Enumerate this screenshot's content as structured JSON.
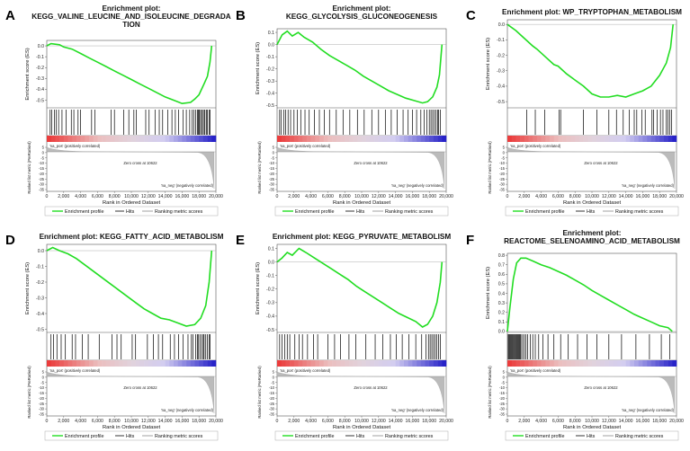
{
  "colors": {
    "es_line": "#22dd22",
    "hits": "#000000",
    "pos_label": "#ee2222",
    "neg_label": "#3333cc",
    "metric_fill": "#bbbbbb",
    "zero_line": "#999999"
  },
  "common": {
    "es_ylabel": "Enrichment score (ES)",
    "metric_ylabel": "Ranked list metric (PreRanked)",
    "xlabel": "Rank in Ordered Dataset",
    "zero_cross": "Zero cross at 10622",
    "pos_label": "'na_pos' (positively correlated)",
    "neg_label": "'na_neg' (negatively correlated)",
    "legend": [
      "Enrichment profile",
      "Hits",
      "Ranking metric scores"
    ],
    "x_ticks": [
      "0",
      "2,000",
      "4,000",
      "6,000",
      "8,000",
      "10,000",
      "12,000",
      "14,000",
      "16,000",
      "18,000",
      "20,000"
    ],
    "metric_ticks": [
      "5",
      "0",
      "-5",
      "-10",
      "-15",
      "-20",
      "-25",
      "-30",
      "-35"
    ]
  },
  "chart_data": [
    {
      "panel": "A",
      "type": "line",
      "title_lines": [
        "Enrichment plot:",
        "KEGG_VALINE_LEUCINE_AND_ISOLEUCINE_DEGRADA",
        "TION"
      ],
      "ylim": [
        -0.57,
        0.05
      ],
      "xlim": [
        0,
        20000
      ],
      "y_ticks": [
        0.0,
        -0.1,
        -0.2,
        -0.3,
        -0.4,
        -0.5
      ],
      "y_tick_labels": [
        "0.0",
        "-0.1",
        "-0.2",
        "-0.3",
        "-0.4",
        "-0.5"
      ],
      "es_points": [
        [
          0,
          0.0
        ],
        [
          500,
          0.02
        ],
        [
          1500,
          0.01
        ],
        [
          2000,
          -0.01
        ],
        [
          3000,
          -0.03
        ],
        [
          4000,
          -0.07
        ],
        [
          5000,
          -0.11
        ],
        [
          6000,
          -0.15
        ],
        [
          7000,
          -0.19
        ],
        [
          8000,
          -0.23
        ],
        [
          9000,
          -0.27
        ],
        [
          10000,
          -0.31
        ],
        [
          11000,
          -0.35
        ],
        [
          12000,
          -0.39
        ],
        [
          13000,
          -0.43
        ],
        [
          14000,
          -0.47
        ],
        [
          15000,
          -0.5
        ],
        [
          16000,
          -0.53
        ],
        [
          17000,
          -0.52
        ],
        [
          17500,
          -0.49
        ],
        [
          18000,
          -0.45
        ],
        [
          18600,
          -0.35
        ],
        [
          19000,
          -0.28
        ],
        [
          19300,
          -0.15
        ],
        [
          19500,
          0.0
        ]
      ],
      "hits": [
        400,
        600,
        900,
        1100,
        1400,
        1800,
        2300,
        2900,
        3200,
        3700,
        4000,
        5300,
        5700,
        7600,
        8000,
        9100,
        9700,
        10300,
        10600,
        11700,
        12100,
        12800,
        13300,
        13700,
        14300,
        14800,
        15200,
        15600,
        16100,
        16500,
        16900,
        17200,
        17400,
        17600,
        17800,
        17900,
        18000,
        18100,
        18300,
        18400,
        18600,
        18700,
        18900,
        19000,
        19200,
        19300
      ]
    },
    {
      "panel": "B",
      "type": "line",
      "title_lines": [
        "Enrichment plot:",
        "KEGG_GLYCOLYSIS_GLUCONEOGENESIS"
      ],
      "ylim": [
        -0.52,
        0.13
      ],
      "xlim": [
        0,
        20000
      ],
      "y_ticks": [
        0.1,
        0.0,
        -0.1,
        -0.2,
        -0.3,
        -0.4,
        -0.5
      ],
      "y_tick_labels": [
        "0.1",
        "0.0",
        "-0.1",
        "-0.2",
        "-0.3",
        "-0.4",
        "-0.5"
      ],
      "es_points": [
        [
          0,
          0.0
        ],
        [
          600,
          0.08
        ],
        [
          1200,
          0.11
        ],
        [
          1800,
          0.07
        ],
        [
          2500,
          0.1
        ],
        [
          3200,
          0.06
        ],
        [
          4200,
          0.02
        ],
        [
          5200,
          -0.04
        ],
        [
          6200,
          -0.09
        ],
        [
          7200,
          -0.13
        ],
        [
          8200,
          -0.17
        ],
        [
          9200,
          -0.21
        ],
        [
          10200,
          -0.26
        ],
        [
          11200,
          -0.3
        ],
        [
          12200,
          -0.34
        ],
        [
          13200,
          -0.38
        ],
        [
          14200,
          -0.41
        ],
        [
          15200,
          -0.44
        ],
        [
          16200,
          -0.46
        ],
        [
          17200,
          -0.48
        ],
        [
          17800,
          -0.47
        ],
        [
          18400,
          -0.43
        ],
        [
          18900,
          -0.35
        ],
        [
          19200,
          -0.25
        ],
        [
          19500,
          0.0
        ]
      ],
      "hits": [
        300,
        500,
        800,
        1000,
        1300,
        1600,
        2000,
        2400,
        2800,
        3300,
        3800,
        4400,
        5000,
        5600,
        6200,
        7000,
        7800,
        8600,
        9500,
        10300,
        11200,
        12000,
        12800,
        13500,
        14200,
        14900,
        15500,
        16000,
        16500,
        17000,
        17400,
        17700,
        18000,
        18200,
        18400,
        18600,
        18800,
        19000,
        19100,
        19300
      ]
    },
    {
      "panel": "C",
      "type": "line",
      "title_lines": [
        "Enrichment plot: WP_TRYPTOPHAN_METABOLISM"
      ],
      "ylim": [
        -0.54,
        0.03
      ],
      "xlim": [
        0,
        20000
      ],
      "y_ticks": [
        0.0,
        -0.1,
        -0.2,
        -0.3,
        -0.4,
        -0.5
      ],
      "y_tick_labels": [
        "0.0",
        "-0.1",
        "-0.2",
        "-0.3",
        "-0.4",
        "-0.5"
      ],
      "es_points": [
        [
          0,
          0.0
        ],
        [
          1000,
          -0.04
        ],
        [
          2000,
          -0.09
        ],
        [
          3000,
          -0.14
        ],
        [
          3500,
          -0.16
        ],
        [
          4500,
          -0.21
        ],
        [
          5500,
          -0.26
        ],
        [
          6000,
          -0.27
        ],
        [
          7000,
          -0.32
        ],
        [
          8000,
          -0.36
        ],
        [
          9000,
          -0.4
        ],
        [
          10000,
          -0.45
        ],
        [
          11000,
          -0.47
        ],
        [
          12000,
          -0.47
        ],
        [
          13000,
          -0.46
        ],
        [
          14000,
          -0.47
        ],
        [
          15000,
          -0.45
        ],
        [
          16000,
          -0.43
        ],
        [
          17000,
          -0.4
        ],
        [
          18000,
          -0.33
        ],
        [
          18800,
          -0.25
        ],
        [
          19300,
          -0.15
        ],
        [
          19600,
          0.0
        ]
      ],
      "hits": [
        2300,
        3300,
        4400,
        6100,
        6300,
        9000,
        10600,
        12000,
        12900,
        13700,
        14400,
        15000,
        15300,
        15900,
        16300,
        17100,
        17300,
        17700,
        18100,
        18400,
        18800,
        19000,
        19200,
        19400
      ]
    },
    {
      "panel": "D",
      "type": "line",
      "title_lines": [
        "Enrichment plot: KEGG_FATTY_ACID_METABOLISM"
      ],
      "ylim": [
        -0.52,
        0.04
      ],
      "xlim": [
        0,
        20000
      ],
      "y_ticks": [
        0.0,
        -0.1,
        -0.2,
        -0.3,
        -0.4,
        -0.5
      ],
      "y_tick_labels": [
        "0.0",
        "-0.1",
        "-0.2",
        "-0.3",
        "-0.4",
        "-0.5"
      ],
      "es_points": [
        [
          0,
          0.0
        ],
        [
          700,
          0.02
        ],
        [
          1500,
          0.0
        ],
        [
          2500,
          -0.02
        ],
        [
          3500,
          -0.05
        ],
        [
          4500,
          -0.09
        ],
        [
          5500,
          -0.13
        ],
        [
          6500,
          -0.17
        ],
        [
          7500,
          -0.21
        ],
        [
          8500,
          -0.25
        ],
        [
          9500,
          -0.29
        ],
        [
          10500,
          -0.33
        ],
        [
          11500,
          -0.37
        ],
        [
          12500,
          -0.4
        ],
        [
          13500,
          -0.43
        ],
        [
          14500,
          -0.44
        ],
        [
          15500,
          -0.46
        ],
        [
          16500,
          -0.48
        ],
        [
          17500,
          -0.47
        ],
        [
          18200,
          -0.43
        ],
        [
          18800,
          -0.35
        ],
        [
          19200,
          -0.2
        ],
        [
          19500,
          0.0
        ]
      ],
      "hits": [
        500,
        800,
        1200,
        1700,
        2200,
        3000,
        3400,
        4200,
        4900,
        6200,
        7700,
        8300,
        8800,
        10100,
        10500,
        11900,
        12600,
        13200,
        13700,
        14600,
        15100,
        15600,
        16100,
        16700,
        17100,
        17300,
        17600,
        17800,
        17900,
        18100,
        18300,
        18500,
        18600,
        18800,
        19000,
        19200,
        19300
      ]
    },
    {
      "panel": "E",
      "type": "line",
      "title_lines": [
        "Enrichment plot: KEGG_PYRUVATE_METABOLISM"
      ],
      "ylim": [
        -0.52,
        0.13
      ],
      "xlim": [
        0,
        20000
      ],
      "y_ticks": [
        0.1,
        0.0,
        -0.1,
        -0.2,
        -0.3,
        -0.4,
        -0.5
      ],
      "y_tick_labels": [
        "0.1",
        "0.0",
        "-0.1",
        "-0.2",
        "-0.3",
        "-0.4",
        "-0.5"
      ],
      "es_points": [
        [
          0,
          0.0
        ],
        [
          600,
          0.03
        ],
        [
          1200,
          0.07
        ],
        [
          1800,
          0.05
        ],
        [
          2600,
          0.1
        ],
        [
          3400,
          0.07
        ],
        [
          4400,
          0.03
        ],
        [
          5400,
          -0.01
        ],
        [
          6400,
          -0.05
        ],
        [
          7400,
          -0.09
        ],
        [
          8400,
          -0.13
        ],
        [
          9400,
          -0.18
        ],
        [
          10400,
          -0.22
        ],
        [
          11400,
          -0.26
        ],
        [
          12400,
          -0.3
        ],
        [
          13400,
          -0.34
        ],
        [
          14400,
          -0.38
        ],
        [
          15400,
          -0.41
        ],
        [
          16400,
          -0.44
        ],
        [
          17200,
          -0.48
        ],
        [
          17800,
          -0.46
        ],
        [
          18400,
          -0.4
        ],
        [
          18900,
          -0.3
        ],
        [
          19300,
          -0.15
        ],
        [
          19500,
          0.0
        ]
      ],
      "hits": [
        300,
        600,
        900,
        1200,
        1500,
        2100,
        2600,
        3000,
        3600,
        4300,
        4800,
        6000,
        6800,
        7500,
        8500,
        9300,
        10500,
        11600,
        12500,
        13400,
        14100,
        14800,
        15600,
        16400,
        17100,
        17600,
        17900,
        18100,
        18300,
        18500,
        18700,
        18900,
        19100,
        19300
      ]
    },
    {
      "panel": "F",
      "type": "line",
      "title_lines": [
        "Enrichment plot:",
        "REACTOME_SELENOAMINO_ACID_METABOLISM"
      ],
      "ylim": [
        -0.01,
        0.82
      ],
      "xlim": [
        0,
        20000
      ],
      "y_ticks": [
        0.8,
        0.7,
        0.6,
        0.5,
        0.4,
        0.3,
        0.2,
        0.1,
        0.0
      ],
      "y_tick_labels": [
        "0.8",
        "0.7",
        "0.6",
        "0.5",
        "0.4",
        "0.3",
        "0.2",
        "0.1",
        "0.0"
      ],
      "es_points": [
        [
          0,
          0.0
        ],
        [
          300,
          0.25
        ],
        [
          700,
          0.55
        ],
        [
          1100,
          0.72
        ],
        [
          1600,
          0.77
        ],
        [
          2200,
          0.77
        ],
        [
          3000,
          0.74
        ],
        [
          4000,
          0.7
        ],
        [
          5000,
          0.67
        ],
        [
          6000,
          0.63
        ],
        [
          7000,
          0.59
        ],
        [
          8000,
          0.54
        ],
        [
          9000,
          0.49
        ],
        [
          10000,
          0.43
        ],
        [
          11000,
          0.38
        ],
        [
          12000,
          0.33
        ],
        [
          13000,
          0.28
        ],
        [
          14000,
          0.23
        ],
        [
          15000,
          0.18
        ],
        [
          16000,
          0.14
        ],
        [
          17000,
          0.1
        ],
        [
          18000,
          0.06
        ],
        [
          19000,
          0.04
        ],
        [
          19500,
          0.0
        ]
      ],
      "hits": [
        100,
        200,
        300,
        400,
        500,
        600,
        700,
        800,
        900,
        1000,
        1100,
        1200,
        1300,
        1400,
        1500,
        1600,
        1800,
        2000,
        2200,
        2400,
        2700,
        3000,
        3300,
        3700,
        4200,
        4800,
        5500,
        6300,
        7200,
        8300,
        9400,
        10600,
        12000,
        13500,
        15200,
        16800,
        18200,
        19200
      ]
    }
  ]
}
